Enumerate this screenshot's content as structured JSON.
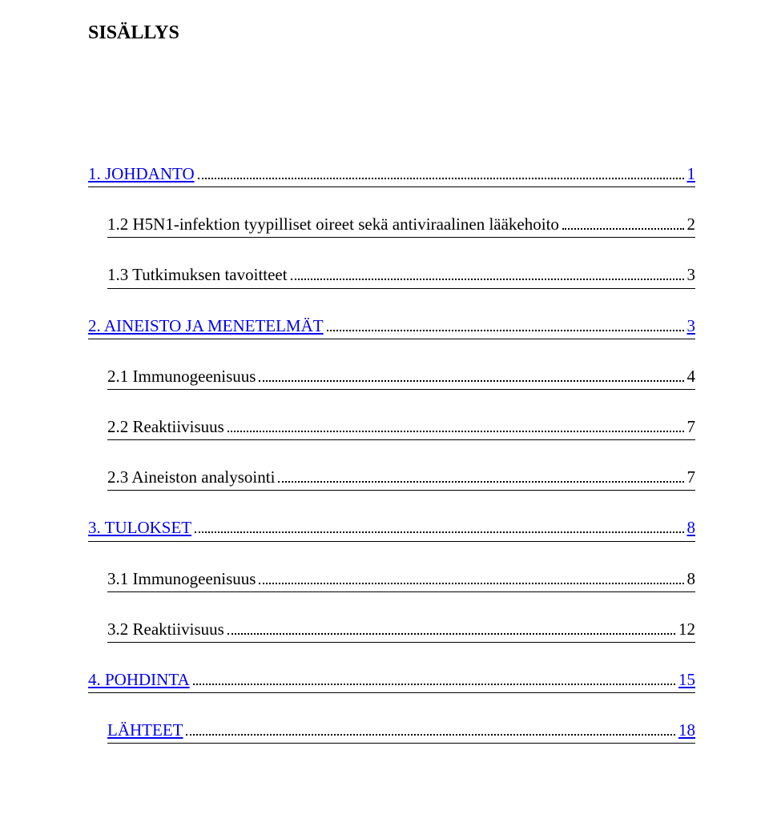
{
  "title": "SISÄLLYS",
  "toc": [
    {
      "label": "1. JOHDANTO",
      "page": "1",
      "level": 0,
      "link": true
    },
    {
      "label": "1.2 H5N1-infektion tyypilliset oireet sekä antiviraalinen lääkehoito",
      "page": "2",
      "level": 1,
      "link": false
    },
    {
      "label": "1.3 Tutkimuksen tavoitteet",
      "page": "3",
      "level": 1,
      "link": false
    },
    {
      "label": "2. AINEISTO JA MENETELMÄT",
      "page": "3",
      "level": 0,
      "link": true
    },
    {
      "label": "2.1 Immunogeenisuus",
      "page": "4",
      "level": 1,
      "link": false
    },
    {
      "label": "2.2 Reaktiivisuus",
      "page": "7",
      "level": 1,
      "link": false
    },
    {
      "label": "2.3 Aineiston analysointi",
      "page": "7",
      "level": 1,
      "link": false
    },
    {
      "label": "3. TULOKSET",
      "page": "8",
      "level": 0,
      "link": true
    },
    {
      "label": "3.1 Immunogeenisuus",
      "page": "8",
      "level": 1,
      "link": false
    },
    {
      "label": "3.2 Reaktiivisuus",
      "page": "12",
      "level": 1,
      "link": false
    },
    {
      "label": "4. POHDINTA",
      "page": "15",
      "level": 0,
      "link": true
    },
    {
      "label": "LÄHTEET",
      "page": "18",
      "level": 1,
      "link": true
    }
  ]
}
